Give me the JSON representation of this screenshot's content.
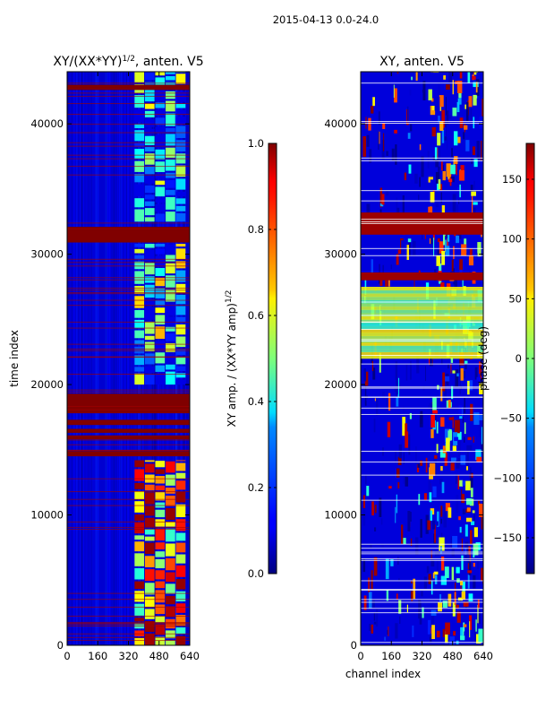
{
  "suptitle": "2015-04-13 0.0-24.0",
  "chart_data": [
    {
      "type": "heatmap",
      "title": "XY/(XX*YY)^{1/2}, anten. V5",
      "title_main": "XY/(XX*YY)",
      "title_exp": "1/2",
      "title_suffix": ", anten. V5",
      "xlabel": "",
      "ylabel": "time index",
      "xlim": [
        0,
        640
      ],
      "ylim": [
        0,
        44000
      ],
      "xticks": [
        0,
        160,
        320,
        480,
        640
      ],
      "yticks": [
        0,
        10000,
        20000,
        30000,
        40000
      ],
      "colormap": "jet",
      "colorbar": {
        "label": "XY amp. / (XX*YY amp)^{1/2}",
        "label_main": "XY amp. / (XX*YY amp)",
        "label_exp": "1/2",
        "range": [
          0.0,
          1.0
        ],
        "ticks": [
          "0.0",
          "0.2",
          "0.4",
          "0.6",
          "0.8",
          "1.0"
        ],
        "tick_values": [
          0.0,
          0.2,
          0.4,
          0.6,
          0.8,
          1.0
        ]
      },
      "background_value": 0.08,
      "saturated_time_bands": [
        [
          30900,
          32100
        ],
        [
          17800,
          19300
        ],
        [
          16900,
          17300
        ],
        [
          16300,
          16600
        ],
        [
          15800,
          16100
        ],
        [
          14500,
          14900
        ],
        [
          42600,
          43000
        ]
      ],
      "active_channel_range": [
        350,
        620
      ],
      "active_time_segments": [
        [
          0,
          14200
        ],
        [
          20000,
          30800
        ],
        [
          32500,
          44000
        ]
      ],
      "active_segment_levels": [
        0.75,
        0.35,
        0.3
      ]
    },
    {
      "type": "heatmap",
      "title": "XY, anten. V5",
      "xlabel": "channel index",
      "ylabel": "",
      "xlim": [
        0,
        640
      ],
      "ylim": [
        0,
        44000
      ],
      "xticks": [
        0,
        160,
        320,
        480,
        640
      ],
      "yticks": [
        0,
        10000,
        20000,
        30000,
        40000
      ],
      "colormap": "jet",
      "colorbar": {
        "label": "phase (deg)",
        "range": [
          -180,
          180
        ],
        "ticks": [
          "−150",
          "−100",
          "−50",
          "0",
          "50",
          "100",
          "150"
        ],
        "tick_values": [
          -150,
          -100,
          -50,
          0,
          50,
          100,
          150
        ]
      },
      "saturated_time_bands": [
        [
          31500,
          33200
        ],
        [
          28000,
          28600
        ]
      ],
      "phase_ramp_time_range": [
        22000,
        27500
      ],
      "active_channel_range": [
        350,
        620
      ]
    }
  ]
}
